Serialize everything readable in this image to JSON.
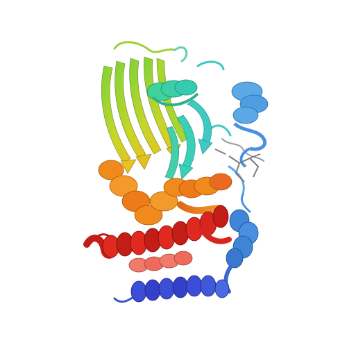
{
  "image": {
    "subject": "protein-ribbon-cartoon",
    "color_scheme": "rainbow-n-to-c",
    "palette": {
      "background": "#ffffff",
      "blue": "#3a4fd6",
      "mid_blue": "#3f86d9",
      "light_blue": "#5aa8e6",
      "cyan": "#3fc9c2",
      "teal_green": "#3fd39a",
      "green": "#7fd23a",
      "yellow_green": "#c7d62a",
      "yellow": "#f0c81e",
      "orange": "#f08a1c",
      "orange_red": "#ee5a2a",
      "red": "#d8251e",
      "salmon": "#f07b6a",
      "ligand_gray": "#7a7a7a"
    }
  }
}
